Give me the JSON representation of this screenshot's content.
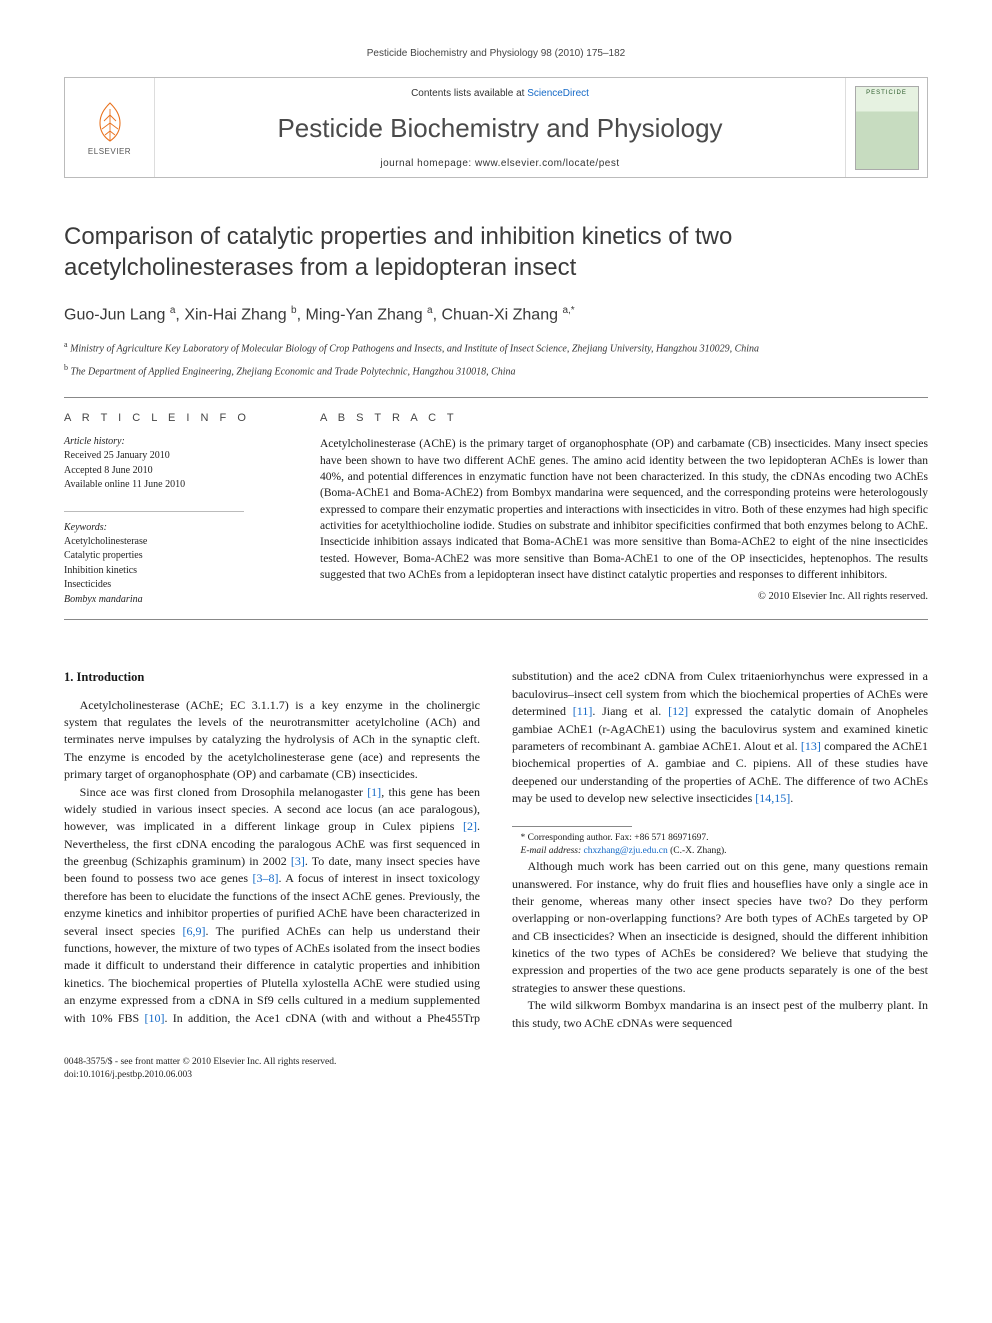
{
  "header": {
    "citation": "Pesticide Biochemistry and Physiology 98 (2010) 175–182"
  },
  "masthead": {
    "publisher_name": "ELSEVIER",
    "contents_prefix": "Contents lists available at ",
    "contents_link": "ScienceDirect",
    "journal_name": "Pesticide Biochemistry and Physiology",
    "homepage_prefix": "journal homepage: ",
    "homepage_url": "www.elsevier.com/locate/pest",
    "cover_label": "PESTICIDE"
  },
  "article": {
    "title": "Comparison of catalytic properties and inhibition kinetics of two acetylcholinesterases from a lepidopteran insect",
    "authors_html": "Guo-Jun Lang <sup>a</sup>, Xin-Hai Zhang <sup>b</sup>, Ming-Yan Zhang <sup>a</sup>, Chuan-Xi Zhang <sup>a,*</sup>",
    "affiliations": [
      {
        "sup": "a",
        "text": "Ministry of Agriculture Key Laboratory of Molecular Biology of Crop Pathogens and Insects, and Institute of Insect Science, Zhejiang University, Hangzhou 310029, China"
      },
      {
        "sup": "b",
        "text": "The Department of Applied Engineering, Zhejiang Economic and Trade Polytechnic, Hangzhou 310018, China"
      }
    ]
  },
  "info": {
    "section_label": "A R T I C L E   I N F O",
    "history_label": "Article history:",
    "history": [
      "Received 25 January 2010",
      "Accepted 8 June 2010",
      "Available online 11 June 2010"
    ],
    "keywords_label": "Keywords:",
    "keywords": [
      "Acetylcholinesterase",
      "Catalytic properties",
      "Inhibition kinetics",
      "Insecticides",
      "Bombyx mandarina"
    ]
  },
  "abstract": {
    "section_label": "A B S T R A C T",
    "text": "Acetylcholinesterase (AChE) is the primary target of organophosphate (OP) and carbamate (CB) insecticides. Many insect species have been shown to have two different AChE genes. The amino acid identity between the two lepidopteran AChEs is lower than 40%, and potential differences in enzymatic function have not been characterized. In this study, the cDNAs encoding two AChEs (Boma-AChE1 and Boma-AChE2) from Bombyx mandarina were sequenced, and the corresponding proteins were heterologously expressed to compare their enzymatic properties and interactions with insecticides in vitro. Both of these enzymes had high specific activities for acetylthiocholine iodide. Studies on substrate and inhibitor specificities confirmed that both enzymes belong to AChE. Insecticide inhibition assays indicated that Boma-AChE1 was more sensitive than Boma-AChE2 to eight of the nine insecticides tested. However, Boma-AChE2 was more sensitive than Boma-AChE1 to one of the OP insecticides, heptenophos. The results suggested that two AChEs from a lepidopteran insect have distinct catalytic properties and responses to different inhibitors.",
    "copyright": "© 2010 Elsevier Inc. All rights reserved."
  },
  "body": {
    "heading": "1. Introduction",
    "p1": "Acetylcholinesterase (AChE; EC 3.1.1.7) is a key enzyme in the cholinergic system that regulates the levels of the neurotransmitter acetylcholine (ACh) and terminates nerve impulses by catalyzing the hydrolysis of ACh in the synaptic cleft. The enzyme is encoded by the acetylcholinesterase gene (ace) and represents the primary target of organophosphate (OP) and carbamate (CB) insecticides.",
    "p2_a": "Since ace was first cloned from Drosophila melanogaster ",
    "p2_ref1": "[1]",
    "p2_b": ", this gene has been widely studied in various insect species. A second ace locus (an ace paralogous), however, was implicated in a different linkage group in Culex pipiens ",
    "p2_ref2": "[2]",
    "p2_c": ". Nevertheless, the first cDNA encoding the paralogous AChE was first sequenced in the greenbug (Schizaphis graminum) in 2002 ",
    "p2_ref3": "[3]",
    "p2_d": ". To date, many insect species have been found to possess two ace genes ",
    "p2_ref4": "[3–8]",
    "p2_e": ". A focus of interest in insect toxicology therefore has been to elucidate the functions of the insect AChE genes. Previously, the enzyme kinetics and inhibitor properties of purified AChE have been characterized in several insect species ",
    "p2_ref5": "[6,9]",
    "p2_f": ". The purified AChEs can help us understand their functions, however, the mixture of two types of AChEs isolated from the insect bodies made it difficult to understand their difference in catalytic properties and inhibition kinetics. The ",
    "p3_a": "biochemical properties of Plutella xylostella AChE were studied using an enzyme expressed from a cDNA in Sf9 cells cultured in a medium supplemented with 10% FBS ",
    "p3_ref1": "[10]",
    "p3_b": ". In addition, the Ace1 cDNA (with and without a Phe455Trp substitution) and the ace2 cDNA from Culex tritaeniorhynchus were expressed in a baculovirus–insect cell system from which the biochemical properties of AChEs were determined ",
    "p3_ref2": "[11]",
    "p3_c": ". Jiang et al. ",
    "p3_ref3": "[12]",
    "p3_d": " expressed the catalytic domain of Anopheles gambiae AChE1 (r-AgAChE1) using the baculovirus system and examined kinetic parameters of recombinant A. gambiae AChE1. Alout et al. ",
    "p3_ref4": "[13]",
    "p3_e": " compared the AChE1 biochemical properties of A. gambiae and C. pipiens. All of these studies have deepened our understanding of the properties of AChE. The difference of two AChEs may be used to develop new selective insecticides ",
    "p3_ref5": "[14,15]",
    "p3_f": ".",
    "p4": "Although much work has been carried out on this gene, many questions remain unanswered. For instance, why do fruit flies and houseflies have only a single ace in their genome, whereas many other insect species have two? Do they perform overlapping or non-overlapping functions? Are both types of AChEs targeted by OP and CB insecticides? When an insecticide is designed, should the different inhibition kinetics of the two types of AChEs be considered? We believe that studying the expression and properties of the two ace gene products separately is one of the best strategies to answer these questions.",
    "p5": "The wild silkworm Bombyx mandarina is an insect pest of the mulberry plant. In this study, two AChE cDNAs were sequenced"
  },
  "footnote": {
    "star": "* Corresponding author. Fax: +86 571 86971697.",
    "email_label": "E-mail address:",
    "email": "chxzhang@zju.edu.cn",
    "email_suffix": "(C.-X. Zhang)."
  },
  "footer": {
    "left_line1": "0048-3575/$ - see front matter © 2010 Elsevier Inc. All rights reserved.",
    "left_line2": "doi:10.1016/j.pestbp.2010.06.003"
  },
  "colors": {
    "link": "#1469c7",
    "text": "#1a1a1a",
    "rule": "#888888",
    "logo_orange": "#e9711c"
  }
}
